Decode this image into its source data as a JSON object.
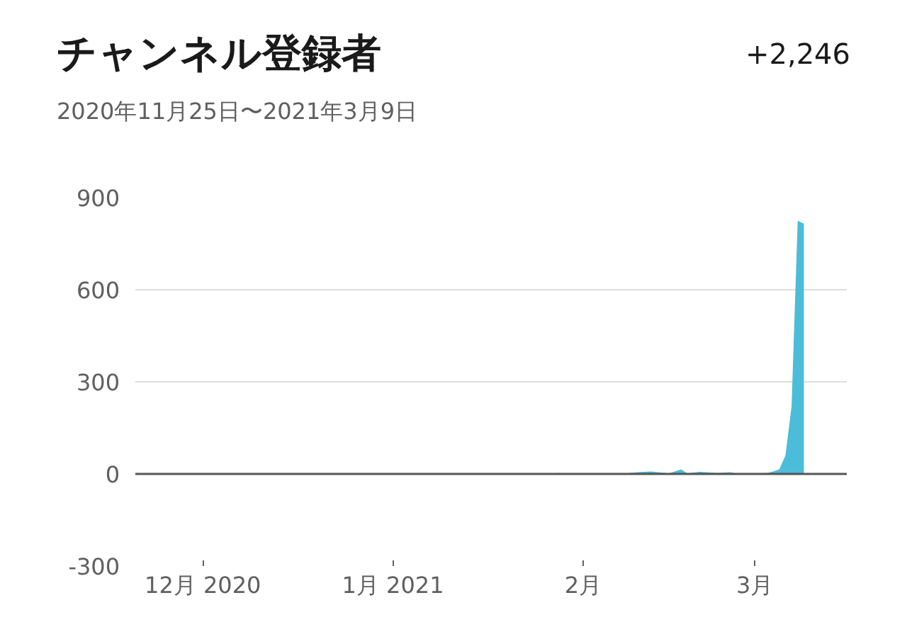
{
  "chart_data": {
    "type": "area",
    "title": "チャンネル登録者",
    "subtitle": "2020年11月25日〜2021年3月9日",
    "annotations": [
      "+2,246"
    ],
    "x": [
      "2020-11-25",
      "2020-11-29",
      "2020-11-30",
      "2020-12-02",
      "2020-12-20",
      "2021-01-10",
      "2021-01-27",
      "2021-01-28",
      "2021-01-30",
      "2021-02-05",
      "2021-02-07",
      "2021-02-10",
      "2021-02-12",
      "2021-02-14",
      "2021-02-15",
      "2021-02-17",
      "2021-02-18",
      "2021-02-20",
      "2021-02-23",
      "2021-02-25",
      "2021-02-26",
      "2021-03-01",
      "2021-03-03",
      "2021-03-04",
      "2021-03-05",
      "2021-03-06",
      "2021-03-07",
      "2021-03-08",
      "2021-03-09"
    ],
    "series": [
      {
        "color": "#4bbcd9",
        "values": [
          0,
          0,
          3,
          0,
          0,
          0,
          0,
          3,
          0,
          2,
          0,
          6,
          8,
          4,
          2,
          15,
          2,
          7,
          3,
          6,
          1,
          2,
          3,
          8,
          15,
          60,
          220,
          825,
          815
        ]
      }
    ],
    "xlim": [
      "2020-11-20",
      "2021-03-16"
    ],
    "xticks": [
      {
        "value": "2020-12-01",
        "label": "12月 2020"
      },
      {
        "value": "2021-01-01",
        "label": "1月 2021"
      },
      {
        "value": "2021-02-01",
        "label": "2月"
      },
      {
        "value": "2021-03-01",
        "label": "3月"
      }
    ],
    "ylim": [
      -300,
      900
    ],
    "yticks": [
      -300,
      0,
      300,
      600,
      900
    ],
    "grid": "y",
    "ref_lines": [
      {
        "axis": "y",
        "value": 0,
        "color": "#555555"
      }
    ]
  }
}
